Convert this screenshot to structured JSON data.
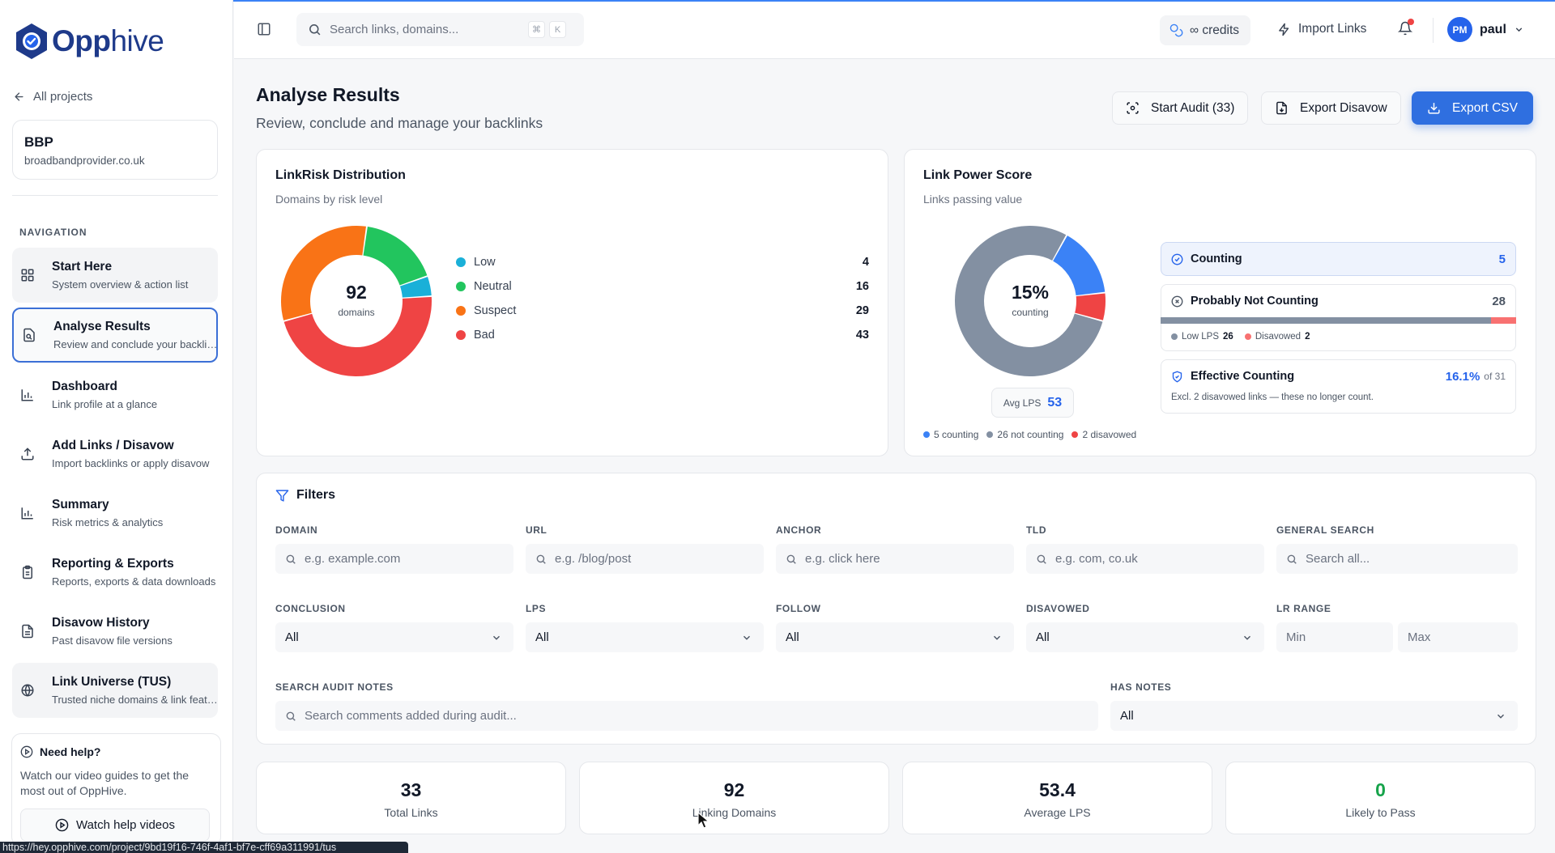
{
  "brand": {
    "name_bold": "Opp",
    "name_rest": "hive"
  },
  "sidebar": {
    "back_label": "All projects",
    "project": {
      "name": "BBP",
      "domain": "broadbandprovider.co.uk"
    },
    "nav_heading": "NAVIGATION",
    "items": [
      {
        "title": "Start Here",
        "subtitle": "System overview & action list",
        "icon": "grid-icon"
      },
      {
        "title": "Analyse Results",
        "subtitle": "Review and conclude your backlinks",
        "icon": "file-search-icon"
      },
      {
        "title": "Dashboard",
        "subtitle": "Link profile at a glance",
        "icon": "bar-chart-icon"
      },
      {
        "title": "Add Links / Disavow",
        "subtitle": "Import backlinks or apply disavow",
        "icon": "upload-icon"
      },
      {
        "title": "Summary",
        "subtitle": "Risk metrics & analytics",
        "icon": "bar-chart-icon"
      },
      {
        "title": "Reporting & Exports",
        "subtitle": "Reports, exports & data downloads",
        "icon": "clipboard-icon"
      },
      {
        "title": "Disavow History",
        "subtitle": "Past disavow file versions",
        "icon": "file-icon"
      },
      {
        "title": "Link Universe (TUS)",
        "subtitle": "Trusted niche domains & link features",
        "icon": "globe-icon"
      }
    ],
    "help": {
      "title": "Need help?",
      "text": "Watch our video guides to get the most out of OppHive.",
      "button": "Watch help videos"
    }
  },
  "status_url": "https://hey.opphive.com/project/9bd19f16-746f-4af1-bf7e-cff69a311991/tus",
  "topbar": {
    "search_placeholder": "Search links, domains...",
    "kbd": [
      "⌘",
      "K"
    ],
    "credits_label": "∞ credits",
    "import_label": "Import Links",
    "user": {
      "initials": "PM",
      "name": "paul"
    }
  },
  "page": {
    "title": "Analyse Results",
    "subtitle": "Review, conclude and manage your backlinks",
    "buttons": {
      "audit": "Start Audit (33)",
      "disavow": "Export Disavow",
      "csv": "Export CSV"
    }
  },
  "colors": {
    "low": "#1ab0d8",
    "neutral": "#22c55e",
    "suspect": "#f97316",
    "bad": "#ef4444",
    "counting": "#3b82f6",
    "not_counting": "#8390a2",
    "disavowed": "#ef4444",
    "primary": "#2f6fe0"
  },
  "linkrisk": {
    "title": "LinkRisk Distribution",
    "subtitle": "Domains by risk level",
    "center_value": "92",
    "center_label": "domains",
    "legend": [
      {
        "label": "Low",
        "count": "4",
        "color": "#1ab0d8"
      },
      {
        "label": "Neutral",
        "count": "16",
        "color": "#22c55e"
      },
      {
        "label": "Suspect",
        "count": "29",
        "color": "#f97316"
      },
      {
        "label": "Bad",
        "count": "43",
        "color": "#ef4444"
      }
    ]
  },
  "lps": {
    "title": "Link Power Score",
    "subtitle": "Links passing value",
    "center_value": "15%",
    "center_label": "counting",
    "avg_label": "Avg LPS",
    "avg_value": "53",
    "legend": [
      "5 counting",
      "26 not counting",
      "2 disavowed"
    ],
    "segments": {
      "counting": 5,
      "not_counting": 26,
      "disavowed": 2
    },
    "counting": {
      "label": "Counting",
      "value": "5"
    },
    "not_counting": {
      "label": "Probably Not Counting",
      "value": "28",
      "low_label": "Low LPS",
      "low_value": "26",
      "dis_label": "Disavowed",
      "dis_value": "2"
    },
    "effective": {
      "label": "Effective Counting",
      "value": "16.1%",
      "of": "of 31",
      "note": "Excl. 2 disavowed links — these no longer count."
    }
  },
  "filters": {
    "title": "Filters",
    "domain": {
      "label": "DOMAIN",
      "placeholder": "e.g. example.com"
    },
    "url": {
      "label": "URL",
      "placeholder": "e.g. /blog/post"
    },
    "anchor": {
      "label": "ANCHOR",
      "placeholder": "e.g. click here"
    },
    "tld": {
      "label": "TLD",
      "placeholder": "e.g. com, co.uk"
    },
    "general": {
      "label": "GENERAL SEARCH",
      "placeholder": "Search all..."
    },
    "conclusion": {
      "label": "CONCLUSION",
      "value": "All"
    },
    "lps": {
      "label": "LPS",
      "value": "All"
    },
    "follow": {
      "label": "FOLLOW",
      "value": "All"
    },
    "disavowed": {
      "label": "DISAVOWED",
      "value": "All"
    },
    "lr_range": {
      "label": "LR RANGE",
      "min_placeholder": "Min",
      "max_placeholder": "Max"
    },
    "notes": {
      "label": "SEARCH AUDIT NOTES",
      "placeholder": "Search comments added during audit..."
    },
    "has_notes": {
      "label": "HAS NOTES",
      "value": "All"
    }
  },
  "metrics": [
    {
      "value": "33",
      "label": "Total Links"
    },
    {
      "value": "92",
      "label": "Linking Domains"
    },
    {
      "value": "53.4",
      "label": "Average LPS"
    },
    {
      "value": "0",
      "label": "Likely to Pass"
    }
  ]
}
